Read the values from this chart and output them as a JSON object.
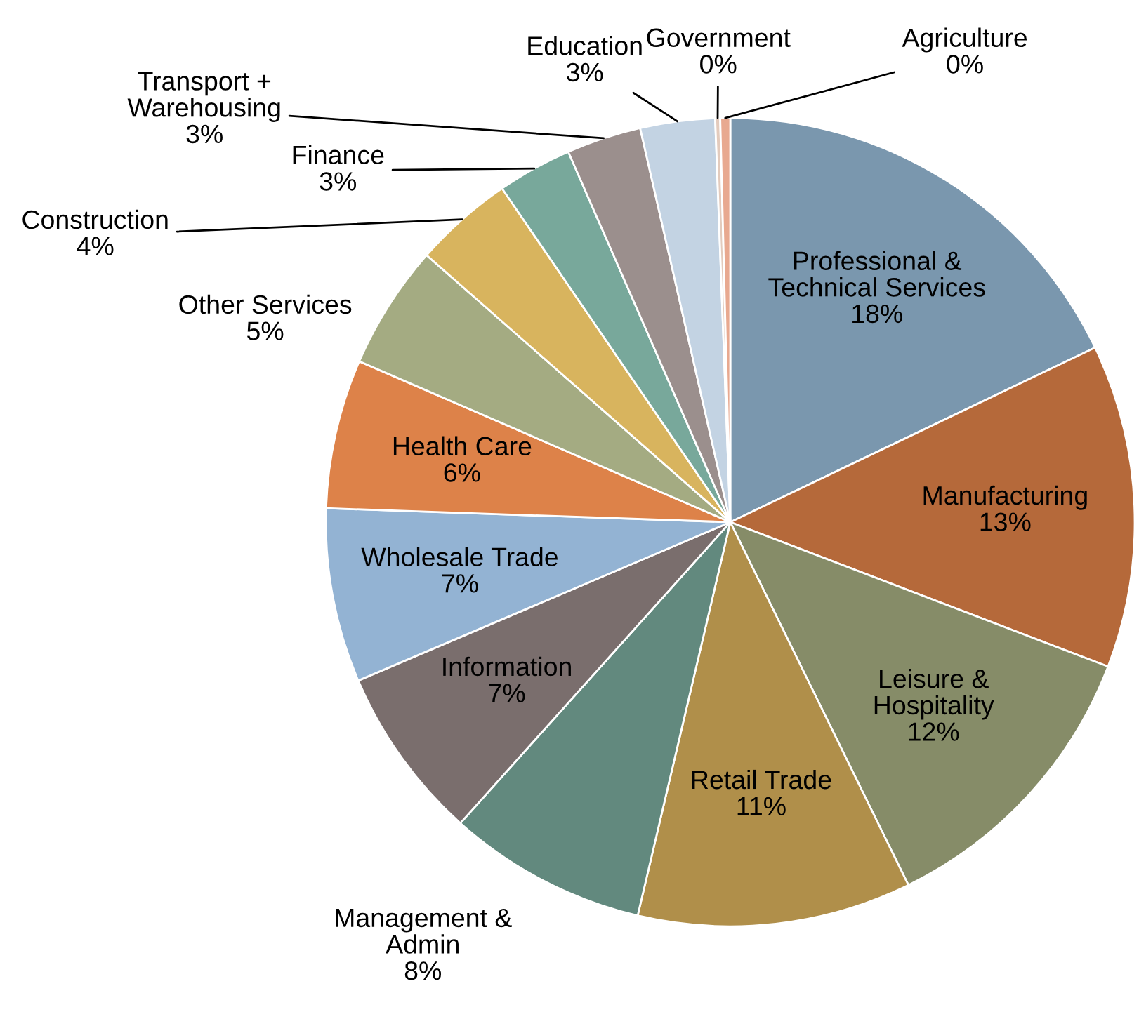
{
  "chart_data": {
    "type": "pie",
    "categories": [
      "Professional &\nTechnical Services",
      "Manufacturing",
      "Leisure &\nHospitality",
      "Retail Trade",
      "Management &\nAdmin",
      "Information",
      "Wholesale Trade",
      "Health Care",
      "Other Services",
      "Construction",
      "Finance",
      "Transport +\nWarehousing",
      "Education",
      "Government",
      "Agriculture"
    ],
    "values": [
      18,
      13,
      12,
      11,
      8,
      7,
      7,
      6,
      5,
      4,
      3,
      3,
      3,
      0.2,
      0.4
    ],
    "value_labels": [
      "18%",
      "13%",
      "12%",
      "11%",
      "8%",
      "7%",
      "7%",
      "6%",
      "5%",
      "4%",
      "3%",
      "3%",
      "3%",
      "0%",
      "0%"
    ],
    "colors": [
      "#7a97ae",
      "#b5693a",
      "#868c68",
      "#b08f4a",
      "#62897e",
      "#7a6e6d",
      "#93b3d3",
      "#dd8249",
      "#a4ab82",
      "#d8b45e",
      "#78a89b",
      "#9b8f8d",
      "#c3d3e3",
      "#e3cbbd",
      "#e8a990"
    ],
    "legend": false
  }
}
